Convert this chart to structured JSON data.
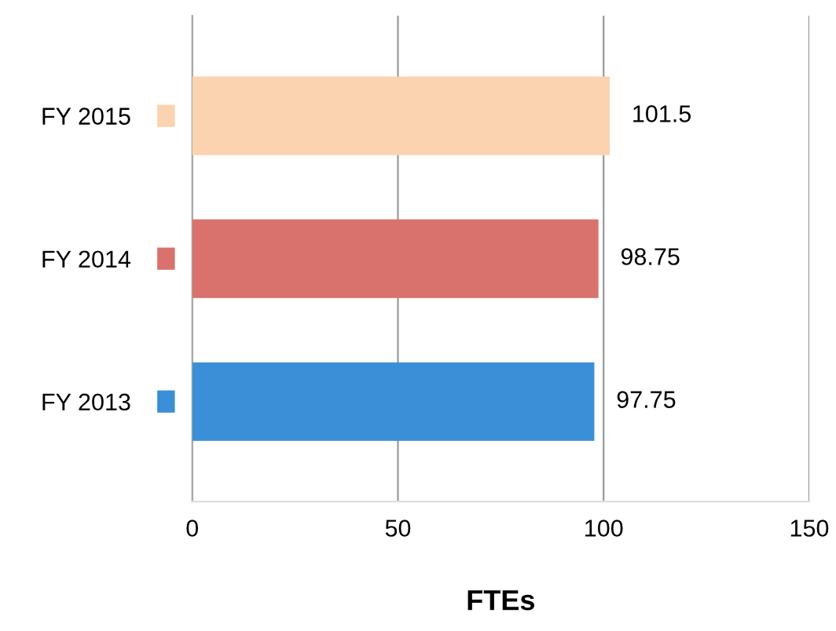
{
  "chart_data": {
    "type": "bar",
    "orientation": "horizontal",
    "xlabel": "FTEs",
    "categories": [
      "FY 2015",
      "FY 2014",
      "FY 2013"
    ],
    "values": [
      101.5,
      98.75,
      97.75
    ],
    "colors": [
      "#fbd3b0",
      "#d9716c",
      "#3a8fd6"
    ],
    "xlim": [
      0,
      150
    ],
    "xticks": [
      0,
      50,
      100,
      150
    ],
    "grid": "x",
    "data_labels": true
  }
}
